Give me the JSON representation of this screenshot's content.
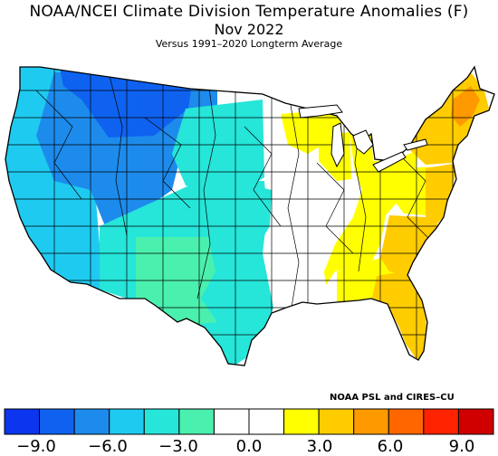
{
  "title": "NOAA/NCEI Climate Division Temperature Anomalies (F)",
  "period": "Nov 2022",
  "subtitle": "Versus 1991–2020 Longterm Average",
  "credit": "NOAA PSL and CIRES–CU",
  "legend": {
    "colors": [
      "#0b35ee",
      "#0f62f0",
      "#1d8bec",
      "#1fcaf0",
      "#26e5d9",
      "#4af0ad",
      "#ffffff",
      "#ffffff",
      "#ffff00",
      "#ffcc00",
      "#ff9900",
      "#ff6600",
      "#ff2200",
      "#d00000"
    ],
    "ticks": [
      "−9.0",
      "−6.0",
      "−3.0",
      "0.0",
      "3.0",
      "6.0",
      "9.0"
    ]
  }
}
